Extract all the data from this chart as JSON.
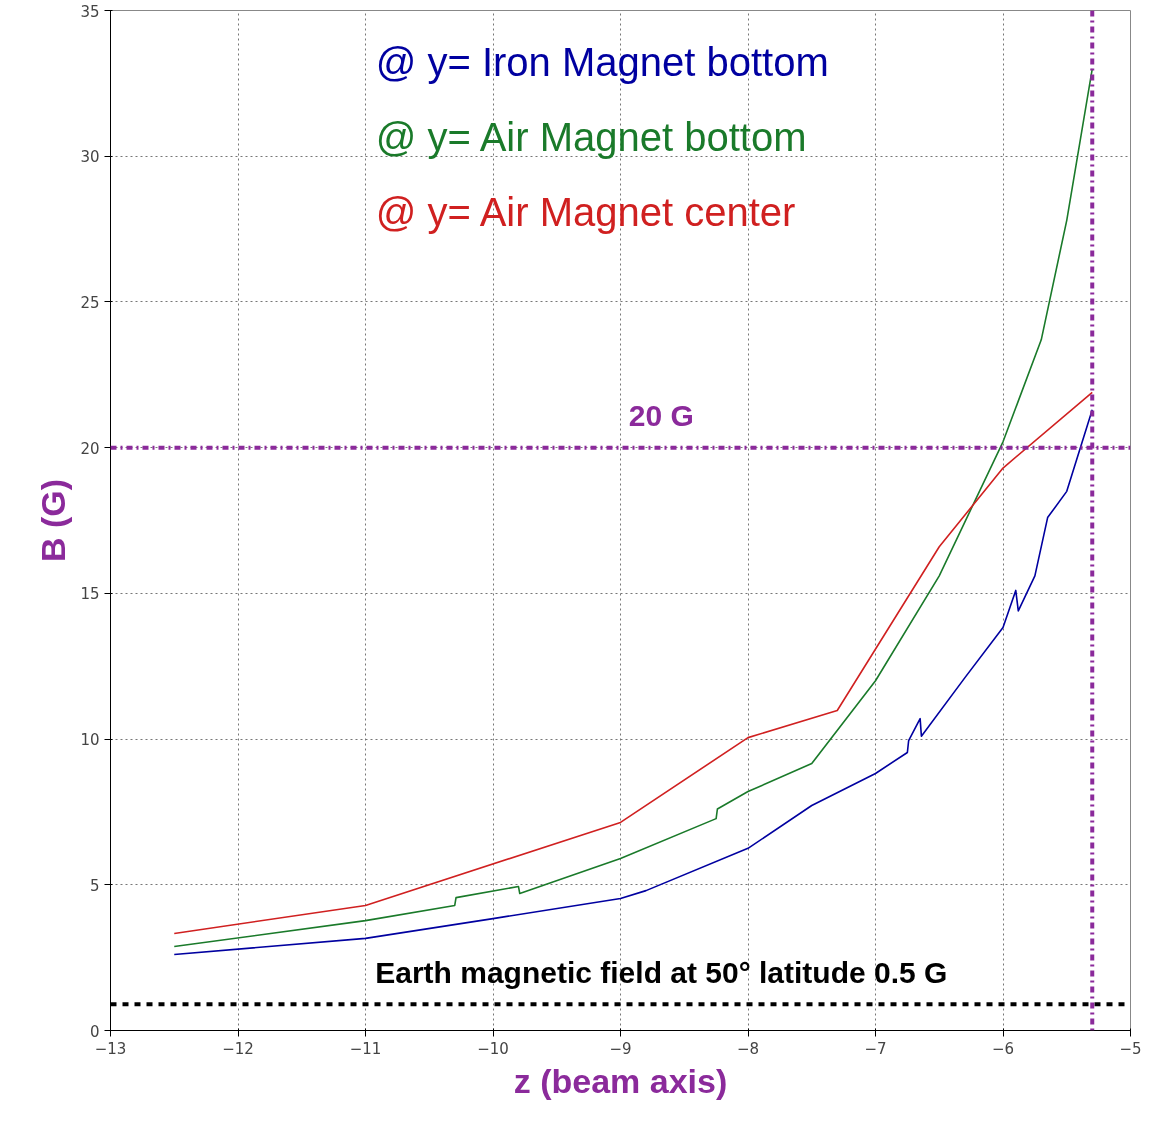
{
  "chart_data": {
    "type": "line",
    "xlabel": "z (beam axis)",
    "ylabel": "B (G)",
    "xlim": [
      -13,
      -5
    ],
    "ylim": [
      0,
      35
    ],
    "xticks": [
      -13,
      -12,
      -11,
      -10,
      -9,
      -8,
      -7,
      -6,
      -5
    ],
    "yticks": [
      0,
      5,
      10,
      15,
      20,
      25,
      30,
      35
    ],
    "grid": true,
    "legend": "top",
    "line_style": "solid",
    "marker": "none",
    "series": [
      {
        "name": "@  y= Iron Magnet bottom",
        "color": "#0000a0",
        "x": [
          -12.5,
          -11,
          -10,
          -9,
          -8.8,
          -8,
          -7.5,
          -7,
          -6.75,
          -6.74,
          -6.65,
          -6.64,
          -6.3,
          -6,
          -5.9,
          -5.88,
          -5.75,
          -5.65,
          -5.5,
          -5.3
        ],
        "values": [
          2.61,
          3.16,
          3.84,
          4.53,
          4.8,
          6.25,
          7.72,
          8.82,
          9.54,
          9.95,
          10.7,
          10.1,
          12.1,
          13.83,
          15.1,
          14.4,
          15.6,
          17.6,
          18.5,
          21.3
        ]
      },
      {
        "name": "@  y= Air Magnet bottom",
        "color": "#1a7a2a",
        "x": [
          -12.5,
          -11,
          -10.3,
          -10.29,
          -9.8,
          -9.79,
          -9,
          -8.25,
          -8.24,
          -8,
          -7.5,
          -7,
          -6.5,
          -6,
          -5.7,
          -5.5,
          -5.3
        ],
        "values": [
          2.88,
          3.77,
          4.29,
          4.56,
          4.94,
          4.7,
          5.9,
          7.27,
          7.6,
          8.2,
          9.16,
          12.0,
          15.6,
          20.2,
          23.7,
          27.8,
          33.0
        ]
      },
      {
        "name": "@  y= Air Magnet center",
        "color": "#d02020",
        "x": [
          -12.5,
          -11,
          -9,
          -8,
          -7.3,
          -6.5,
          -6,
          -5.3
        ],
        "values": [
          3.33,
          4.29,
          7.14,
          10.05,
          10.98,
          16.6,
          19.3,
          21.9
        ]
      }
    ],
    "ref_lines": [
      {
        "axis": "y",
        "value": 20,
        "label": "20 G",
        "color": "#8b2a9b",
        "line_style": "dashdot"
      },
      {
        "axis": "y",
        "value": 0.9,
        "label": "Earth magnetic field at 50° latitude 0.5 G",
        "color": "#000000",
        "line_style": "dashed"
      },
      {
        "axis": "x",
        "value": -5.3,
        "label": null,
        "color": "#8b2a9b",
        "line_style": "dashdot"
      }
    ]
  }
}
